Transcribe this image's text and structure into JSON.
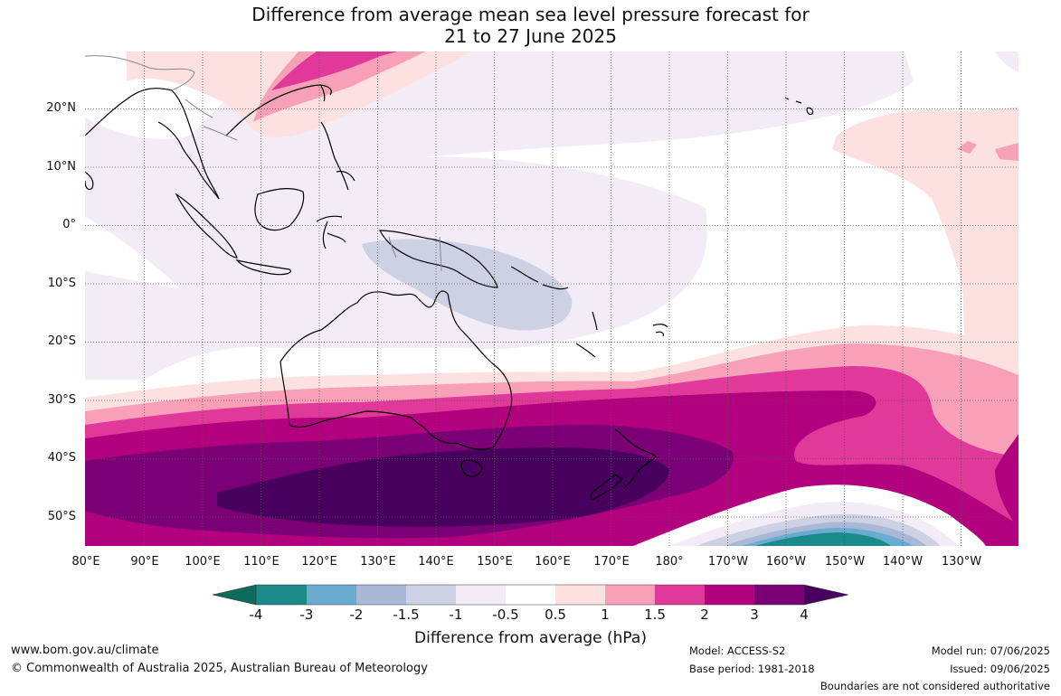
{
  "title_line1": "Difference from average mean sea level pressure forecast for",
  "title_line2": "21 to 27 June 2025",
  "lat_labels": [
    "20°N",
    "10°N",
    "0°",
    "10°S",
    "20°S",
    "30°S",
    "40°S",
    "50°S"
  ],
  "lon_labels": [
    "80°E",
    "90°E",
    "100°E",
    "110°E",
    "120°E",
    "130°E",
    "140°E",
    "150°E",
    "160°E",
    "170°E",
    "180°",
    "170°W",
    "160°W",
    "150°W",
    "140°W",
    "130°W"
  ],
  "colorbar": {
    "title": "Difference from average (hPa)",
    "ticks": [
      "-4",
      "-3",
      "-2",
      "-1.5",
      "-1",
      "-0.5",
      "0.5",
      "1",
      "1.5",
      "2",
      "3",
      "4"
    ],
    "colors": [
      "#1a8a8a",
      "#6aabd0",
      "#a9b8d6",
      "#ccd1e4",
      "#f3ecf6",
      "#ffffff",
      "#fde0e0",
      "#f7a0b8",
      "#e0399a",
      "#b3007f",
      "#7b0075",
      "#48005e"
    ],
    "under_color": "#0d6b5c",
    "over_color": "#48005e"
  },
  "footer": {
    "website": "www.bom.gov.au/climate",
    "copyright": "© Commonwealth of Australia 2025, Australian Bureau of Meteorology",
    "model": "Model: ACCESS-S2",
    "base_period": "Base period: 1981-2018",
    "model_run": "Model run: 07/06/2025",
    "issued": "Issued: 09/06/2025",
    "disclaimer": "Boundaries are not considered authoritative"
  }
}
